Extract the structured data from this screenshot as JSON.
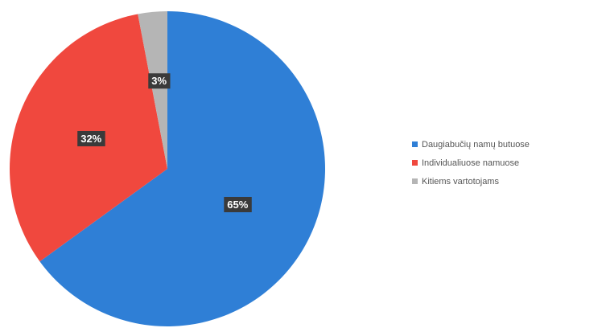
{
  "chart_data": {
    "type": "pie",
    "title": "",
    "start_angle_deg": 0,
    "direction": "clockwise",
    "legend_position": "right",
    "slices": [
      {
        "label": "Daugiabučių namų butuose",
        "value": 65,
        "display": "65%",
        "color": "#2f7fd6"
      },
      {
        "label": "Individualiuose namuose",
        "value": 32,
        "display": "32%",
        "color": "#f0483e"
      },
      {
        "label": "Kitiems vartotojams",
        "value": 3,
        "display": "3%",
        "color": "#b5b5b5"
      }
    ]
  }
}
